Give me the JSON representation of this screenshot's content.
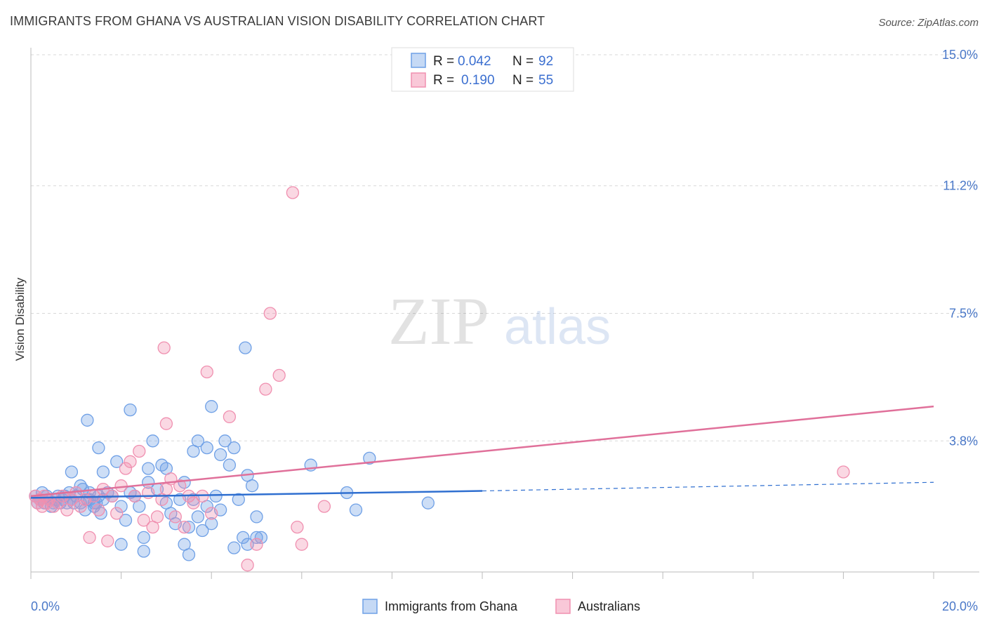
{
  "header": {
    "title": "IMMIGRANTS FROM GHANA VS AUSTRALIAN VISION DISABILITY CORRELATION CHART",
    "source": "Source: ZipAtlas.com"
  },
  "watermark": {
    "zip": "ZIP",
    "atlas": "atlas"
  },
  "legend": {
    "r_label": "R =",
    "n_label": "N =",
    "entries": [
      {
        "r": "0.042",
        "n": "92"
      },
      {
        "r": "0.190",
        "n": "55"
      }
    ]
  },
  "chart_data": {
    "type": "scatter",
    "title": "IMMIGRANTS FROM GHANA VS AUSTRALIAN VISION DISABILITY CORRELATION CHART",
    "xlabel": "",
    "ylabel": "Vision Disability",
    "xlim": [
      0,
      20
    ],
    "ylim": [
      0,
      15
    ],
    "x_tick_labels": [
      "0.0%",
      "20.0%"
    ],
    "y_ticks": [
      3.8,
      7.5,
      11.2,
      15.0
    ],
    "y_tick_labels": [
      "3.8%",
      "7.5%",
      "11.2%",
      "15.0%"
    ],
    "grid": true,
    "colors": {
      "ghana": "#6fa0e6",
      "australians": "#f090b0",
      "ghana_line": "#2f6fd0",
      "australians_line": "#e0709a",
      "tick": "#4a78c8"
    },
    "series": [
      {
        "name": "Immigrants from Ghana",
        "r": 0.042,
        "n": 92,
        "trend": {
          "x_solid_end": 10.0,
          "y_start": 2.15,
          "y_solid_end": 2.35,
          "x_end": 20.0,
          "y_end": 2.6
        },
        "points": [
          [
            0.1,
            2.2
          ],
          [
            0.15,
            2.0
          ],
          [
            0.2,
            2.1
          ],
          [
            0.25,
            2.3
          ],
          [
            0.3,
            2.0
          ],
          [
            0.35,
            2.2
          ],
          [
            0.4,
            2.1
          ],
          [
            0.45,
            1.9
          ],
          [
            0.5,
            2.0
          ],
          [
            0.55,
            2.1
          ],
          [
            0.6,
            2.2
          ],
          [
            0.65,
            2.0
          ],
          [
            0.7,
            2.1
          ],
          [
            0.75,
            2.2
          ],
          [
            0.8,
            2.0
          ],
          [
            0.85,
            2.3
          ],
          [
            0.9,
            2.1
          ],
          [
            0.95,
            2.0
          ],
          [
            1.0,
            2.2
          ],
          [
            1.1,
            2.0
          ],
          [
            1.15,
            2.4
          ],
          [
            1.2,
            1.8
          ],
          [
            1.25,
            2.1
          ],
          [
            1.3,
            2.3
          ],
          [
            1.4,
            1.9
          ],
          [
            1.45,
            2.0
          ],
          [
            1.5,
            2.2
          ],
          [
            1.55,
            1.7
          ],
          [
            1.6,
            2.1
          ],
          [
            1.7,
            2.3
          ],
          [
            0.9,
            2.9
          ],
          [
            1.1,
            2.5
          ],
          [
            1.4,
            2.0
          ],
          [
            1.6,
            2.9
          ],
          [
            1.8,
            2.2
          ],
          [
            1.9,
            3.2
          ],
          [
            2.0,
            1.9
          ],
          [
            2.1,
            1.5
          ],
          [
            2.2,
            2.3
          ],
          [
            2.3,
            2.2
          ],
          [
            2.4,
            1.9
          ],
          [
            2.5,
            1.0
          ],
          [
            2.6,
            2.6
          ],
          [
            2.7,
            3.8
          ],
          [
            2.8,
            2.4
          ],
          [
            2.9,
            3.1
          ],
          [
            3.0,
            2.0
          ],
          [
            3.1,
            1.7
          ],
          [
            3.2,
            1.4
          ],
          [
            3.3,
            2.1
          ],
          [
            3.4,
            2.6
          ],
          [
            3.5,
            1.3
          ],
          [
            3.6,
            2.1
          ],
          [
            3.7,
            1.6
          ],
          [
            3.8,
            1.2
          ],
          [
            3.9,
            1.9
          ],
          [
            4.0,
            1.4
          ],
          [
            4.1,
            2.2
          ],
          [
            4.2,
            1.8
          ],
          [
            4.3,
            3.8
          ],
          [
            4.4,
            3.1
          ],
          [
            4.5,
            3.6
          ],
          [
            4.6,
            2.1
          ],
          [
            4.7,
            1.0
          ],
          [
            4.8,
            2.8
          ],
          [
            4.9,
            2.5
          ],
          [
            5.0,
            1.6
          ],
          [
            5.1,
            1.0
          ],
          [
            1.25,
            4.4
          ],
          [
            2.2,
            4.7
          ],
          [
            2.6,
            3.0
          ],
          [
            3.0,
            3.0
          ],
          [
            3.6,
            3.5
          ],
          [
            3.7,
            3.8
          ],
          [
            3.9,
            3.6
          ],
          [
            4.0,
            4.8
          ],
          [
            4.2,
            3.4
          ],
          [
            3.5,
            0.5
          ],
          [
            4.5,
            0.7
          ],
          [
            3.4,
            0.8
          ],
          [
            2.5,
            0.6
          ],
          [
            2.0,
            0.8
          ],
          [
            4.8,
            0.8
          ],
          [
            5.0,
            1.0
          ],
          [
            4.75,
            6.5
          ],
          [
            6.2,
            3.1
          ],
          [
            7.0,
            2.3
          ],
          [
            7.2,
            1.8
          ],
          [
            7.5,
            3.3
          ],
          [
            8.8,
            2.0
          ],
          [
            1.5,
            3.6
          ],
          [
            1.3,
            2.1
          ]
        ]
      },
      {
        "name": "Australians",
        "r": 0.19,
        "n": 55,
        "trend": {
          "x_start": 0.0,
          "y_start": 2.2,
          "x_end": 20.0,
          "y_end": 4.8
        },
        "points": [
          [
            0.1,
            2.2
          ],
          [
            0.15,
            2.0
          ],
          [
            0.2,
            2.1
          ],
          [
            0.25,
            1.9
          ],
          [
            0.3,
            2.2
          ],
          [
            0.35,
            2.0
          ],
          [
            0.4,
            2.1
          ],
          [
            0.5,
            1.9
          ],
          [
            0.6,
            2.0
          ],
          [
            0.7,
            2.2
          ],
          [
            0.8,
            1.8
          ],
          [
            0.9,
            2.1
          ],
          [
            1.0,
            2.3
          ],
          [
            1.1,
            1.9
          ],
          [
            1.2,
            2.1
          ],
          [
            1.3,
            1.0
          ],
          [
            1.4,
            2.2
          ],
          [
            1.5,
            1.8
          ],
          [
            1.6,
            2.4
          ],
          [
            1.7,
            0.9
          ],
          [
            1.8,
            2.2
          ],
          [
            1.9,
            1.7
          ],
          [
            2.0,
            2.5
          ],
          [
            2.1,
            3.0
          ],
          [
            2.2,
            3.2
          ],
          [
            2.3,
            2.2
          ],
          [
            2.4,
            3.5
          ],
          [
            2.5,
            1.5
          ],
          [
            2.6,
            2.3
          ],
          [
            2.7,
            1.3
          ],
          [
            2.8,
            1.6
          ],
          [
            2.9,
            2.1
          ],
          [
            3.0,
            2.4
          ],
          [
            3.1,
            2.7
          ],
          [
            3.2,
            1.6
          ],
          [
            3.3,
            2.5
          ],
          [
            3.4,
            1.3
          ],
          [
            3.5,
            2.2
          ],
          [
            3.6,
            2.0
          ],
          [
            3.8,
            2.2
          ],
          [
            4.0,
            1.7
          ],
          [
            3.0,
            4.3
          ],
          [
            2.95,
            6.5
          ],
          [
            3.9,
            5.8
          ],
          [
            4.4,
            4.5
          ],
          [
            5.2,
            5.3
          ],
          [
            5.5,
            5.7
          ],
          [
            5.3,
            7.5
          ],
          [
            5.8,
            11.0
          ],
          [
            4.8,
            0.2
          ],
          [
            5.0,
            0.8
          ],
          [
            6.0,
            0.8
          ],
          [
            5.9,
            1.3
          ],
          [
            6.5,
            1.9
          ],
          [
            18.0,
            2.9
          ]
        ]
      }
    ]
  },
  "bottom_legend": {
    "items": [
      "Immigrants from Ghana",
      "Australians"
    ]
  }
}
